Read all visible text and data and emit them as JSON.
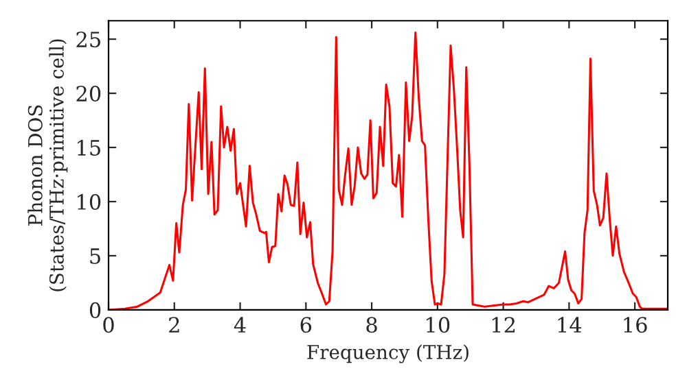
{
  "chart_data": {
    "type": "line",
    "xlabel": "Frequency (THz)",
    "ylabel": "Phonon DOS\n(States/THz·primitive cell)",
    "xlim": [
      0,
      17
    ],
    "ylim": [
      0,
      26.7
    ],
    "xticks": [
      0,
      2,
      4,
      6,
      8,
      10,
      12,
      14,
      16
    ],
    "yticks": [
      0,
      5,
      10,
      15,
      20,
      25
    ],
    "grid": false,
    "series": [
      {
        "color": "#ff0000",
        "x": [
          0,
          0.5,
          0.875,
          1.2,
          1.57,
          1.85,
          1.96,
          2.06,
          2.15,
          2.26,
          2.35,
          2.44,
          2.54,
          2.74,
          2.83,
          2.93,
          3.03,
          3.13,
          3.22,
          3.32,
          3.42,
          3.51,
          3.61,
          3.71,
          3.81,
          3.9,
          4.0,
          4.18,
          4.29,
          4.39,
          4.49,
          4.6,
          4.74,
          4.79,
          4.875,
          4.97,
          5.07,
          5.16,
          5.26,
          5.35,
          5.44,
          5.54,
          5.64,
          5.74,
          5.83,
          5.93,
          6.03,
          6.13,
          6.22,
          6.36,
          6.5,
          6.61,
          6.71,
          6.81,
          6.92,
          7.0,
          7.1,
          7.19,
          7.29,
          7.39,
          7.48,
          7.58,
          7.68,
          7.78,
          7.87,
          7.96,
          8.05,
          8.15,
          8.25,
          8.35,
          8.44,
          8.54,
          8.64,
          8.74,
          8.83,
          8.93,
          9.04,
          9.14,
          9.23,
          9.33,
          9.43,
          9.53,
          9.62,
          9.72,
          9.82,
          9.92,
          10.01,
          10.11,
          10.21,
          10.4,
          10.5,
          10.6,
          10.69,
          10.78,
          10.875,
          10.97,
          11.07,
          11.43,
          11.99,
          12.2,
          12.4,
          12.61,
          12.75,
          12.96,
          13.24,
          13.38,
          13.54,
          13.69,
          13.88,
          13.97,
          14.07,
          14.17,
          14.28,
          14.38,
          14.47,
          14.56,
          14.65,
          14.75,
          14.85,
          14.94,
          15.04,
          15.14,
          15.24,
          15.33,
          15.43,
          15.53,
          15.67,
          15.81,
          15.94,
          16.04,
          16.15,
          16.22,
          17
        ],
        "values": [
          0,
          0.1,
          0.3,
          0.8,
          1.6,
          4.15,
          2.7,
          8.0,
          5.3,
          9.7,
          11.1,
          19.0,
          10.1,
          20.1,
          13.0,
          22.3,
          10.7,
          15.5,
          8.8,
          9.2,
          18.8,
          15.0,
          16.9,
          14.7,
          16.7,
          10.7,
          11.7,
          7.7,
          13.3,
          9.9,
          8.8,
          7.3,
          7.1,
          7.2,
          4.4,
          5.8,
          5.9,
          10.7,
          9.1,
          12.4,
          11.6,
          9.7,
          9.6,
          13.6,
          7.0,
          9.9,
          6.7,
          8.1,
          4.2,
          2.5,
          1.4,
          0.5,
          0.8,
          5.4,
          25.2,
          11.1,
          9.7,
          12.4,
          14.9,
          9.7,
          11.4,
          15.0,
          12.6,
          12.1,
          12.5,
          17.5,
          10.3,
          10.8,
          16.9,
          13.3,
          20.8,
          18.8,
          11.7,
          11.4,
          14.3,
          8.6,
          21.0,
          15.6,
          17.9,
          25.6,
          19.6,
          15.6,
          15.2,
          8.4,
          2.7,
          0.5,
          0.6,
          0.5,
          3.3,
          24.4,
          20.3,
          14.7,
          9.2,
          6.7,
          22.4,
          13.5,
          0.5,
          0.3,
          0.5,
          0.5,
          0.6,
          0.8,
          0.7,
          1.0,
          1.4,
          2.2,
          2.0,
          2.5,
          5.4,
          2.8,
          1.8,
          1.5,
          0.6,
          1.0,
          7.1,
          9.2,
          23.2,
          11.0,
          9.7,
          7.8,
          8.5,
          12.6,
          8.2,
          5.0,
          7.7,
          5.2,
          3.5,
          2.5,
          1.5,
          1.2,
          0.3,
          0.1,
          0.1
        ]
      }
    ]
  }
}
